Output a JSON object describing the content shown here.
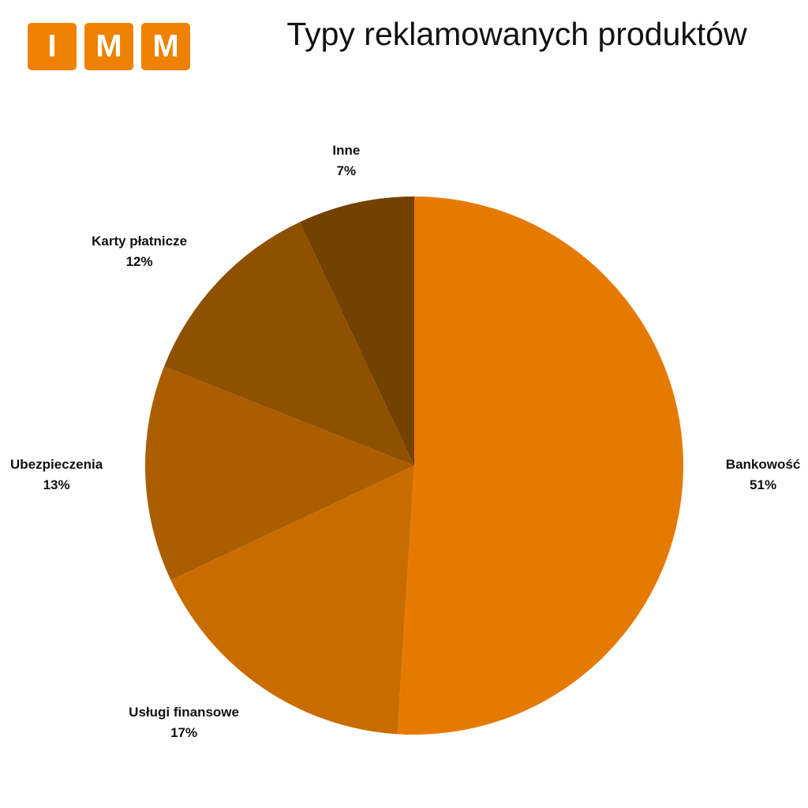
{
  "logo": {
    "letters": [
      "I",
      "M",
      "M"
    ]
  },
  "chart_data": {
    "type": "pie",
    "title": "Typy reklamowanych produktów",
    "categories": [
      "Bankowość",
      "Usługi finansowe",
      "Ubezpieczenia",
      "Karty płatnicze",
      "Inne"
    ],
    "values": [
      51,
      17,
      13,
      12,
      7
    ],
    "value_labels": [
      "51%",
      "17%",
      "13%",
      "12%",
      "7%"
    ],
    "colors": [
      "#e67a00",
      "#c96c00",
      "#ab5e00",
      "#8f5000",
      "#734100"
    ]
  }
}
